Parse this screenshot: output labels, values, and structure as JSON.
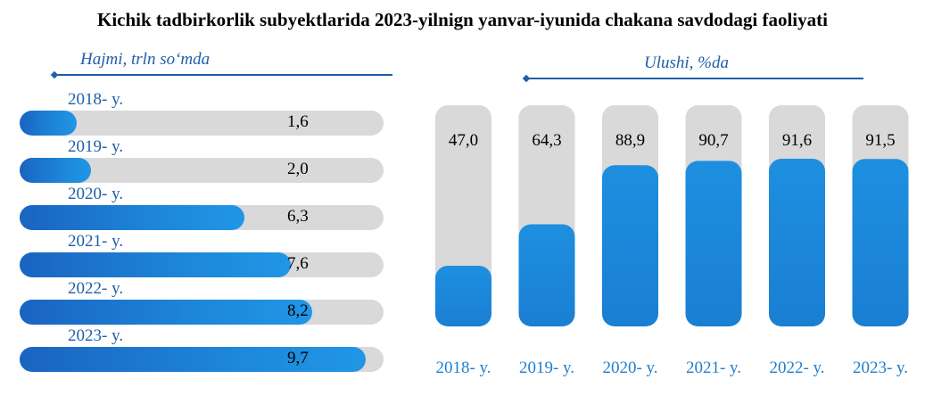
{
  "title": "Kichik tadbirkorlik subyektlarida 2023-yilnign yanvar-iyunida chakana savdodagi faoliyati",
  "left_caption": "Hajmi, trln so‘mda",
  "right_caption": "Ulushi, %da",
  "colors": {
    "accent": "#1f5fa8",
    "bar": "#1d86d8",
    "track": "#d9d9d9"
  },
  "chart_data": [
    {
      "type": "bar",
      "orientation": "horizontal",
      "title": "Hajmi, trln so‘mda",
      "categories": [
        "2018- y.",
        "2019- y.",
        "2020- y.",
        "2021- y.",
        "2022- y.",
        "2023- y."
      ],
      "values": [
        1.6,
        2.0,
        6.3,
        7.6,
        8.2,
        9.7
      ],
      "value_labels": [
        "1,6",
        "2,0",
        "6,3",
        "7,6",
        "8,2",
        "9,7"
      ],
      "xlim": [
        0,
        10
      ]
    },
    {
      "type": "bar",
      "orientation": "vertical",
      "title": "Ulushi, %da",
      "categories": [
        "2018- y.",
        "2019- y.",
        "2020- y.",
        "2021- y.",
        "2022- y.",
        "2023- y."
      ],
      "values": [
        47.0,
        64.3,
        88.9,
        90.7,
        91.6,
        91.5
      ],
      "value_labels": [
        "47,0",
        "64,3",
        "88,9",
        "90,7",
        "91,6",
        "91,5"
      ]
    }
  ]
}
